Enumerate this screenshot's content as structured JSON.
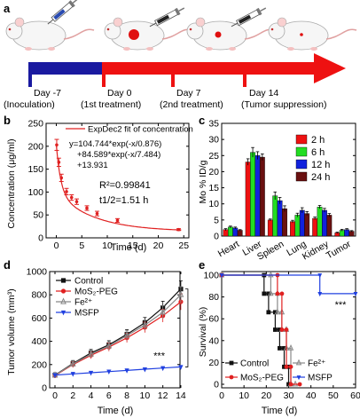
{
  "panel_labels": [
    "a",
    "b",
    "c",
    "d",
    "e"
  ],
  "timeline": {
    "steps": [
      {
        "day": "Day -7",
        "event": "(Inoculation)"
      },
      {
        "day": "Day 0",
        "event": "(1st treatment)"
      },
      {
        "day": "Day 7",
        "event": "(2nd treatment)"
      },
      {
        "day": "Day 14",
        "event": "(Tumor suppression)"
      }
    ],
    "colors": {
      "pre": "#1a1aa0",
      "post": "#ee1111",
      "tumor": "#e01010"
    }
  },
  "chart_data": [
    {
      "panel": "b",
      "type": "line",
      "xlabel": "Time (d)",
      "ylabel": "Concentration (μg/ml)",
      "xlim": [
        -2,
        26
      ],
      "ylim": [
        0,
        250
      ],
      "xticks": [
        0,
        5,
        10,
        15,
        20,
        25
      ],
      "yticks": [
        0,
        50,
        100,
        150,
        200,
        250
      ],
      "legend": "ExpDec2 fit of concentration",
      "equation": [
        "y=104.744*exp(-x/0.876)",
        "+84.589*exp(-x/7.484)",
        "+13.931"
      ],
      "r2": "R²=0.99841",
      "half_life": "t1/2=1.51 h",
      "points": [
        {
          "x": 0.08,
          "y": 203,
          "err": 12
        },
        {
          "x": 0.5,
          "y": 165,
          "err": 9
        },
        {
          "x": 1,
          "y": 131,
          "err": 8
        },
        {
          "x": 2,
          "y": 101,
          "err": 7
        },
        {
          "x": 3,
          "y": 88,
          "err": 6
        },
        {
          "x": 4,
          "y": 79,
          "err": 6
        },
        {
          "x": 6,
          "y": 65,
          "err": 5
        },
        {
          "x": 8,
          "y": 53,
          "err": 5
        },
        {
          "x": 12,
          "y": 38,
          "err": 4
        },
        {
          "x": 24,
          "y": 18,
          "err": 2
        }
      ],
      "fit": {
        "a1": 104.744,
        "t1": 0.876,
        "a2": 84.589,
        "t2": 7.484,
        "y0": 13.931
      },
      "color": "#e02020"
    },
    {
      "panel": "c",
      "type": "bar",
      "ylabel": "Mo % ID/g",
      "ylim": [
        0,
        35
      ],
      "yticks": [
        0,
        5,
        10,
        15,
        20,
        25,
        30,
        35
      ],
      "categories": [
        "Heart",
        "Liver",
        "Spleen",
        "Lung",
        "Kidney",
        "Tumor"
      ],
      "series": [
        {
          "name": "2 h",
          "color": "#ee1111",
          "values": [
            2.0,
            23.0,
            5.0,
            4.5,
            5.5,
            1.0
          ],
          "err": [
            0.3,
            1.0,
            0.3,
            0.4,
            0.4,
            0.2
          ]
        },
        {
          "name": "6 h",
          "color": "#22dd22",
          "values": [
            2.8,
            26.0,
            12.5,
            6.5,
            9.0,
            1.8
          ],
          "err": [
            0.3,
            1.5,
            1.2,
            0.6,
            0.5,
            0.3
          ]
        },
        {
          "name": "12 h",
          "color": "#1122dd",
          "values": [
            2.5,
            25.0,
            11.0,
            8.0,
            8.0,
            2.0
          ],
          "err": [
            0.3,
            1.2,
            1.0,
            0.8,
            0.6,
            0.3
          ]
        },
        {
          "name": "24 h",
          "color": "#6a1010",
          "values": [
            1.8,
            24.5,
            8.5,
            7.0,
            6.5,
            1.5
          ],
          "err": [
            0.2,
            1.0,
            0.9,
            0.6,
            0.5,
            0.2
          ]
        }
      ]
    },
    {
      "panel": "d",
      "type": "line",
      "xlabel": "Time (d)",
      "ylabel": "Tumor volume (mm³)",
      "xlim": [
        0,
        14.5
      ],
      "ylim": [
        0,
        1000
      ],
      "xticks": [
        0,
        2,
        4,
        6,
        8,
        10,
        12,
        14
      ],
      "yticks": [
        0,
        200,
        400,
        600,
        800,
        1000
      ],
      "annotation": "***",
      "x": [
        0,
        2,
        4,
        6,
        8,
        10,
        12,
        14
      ],
      "series": [
        {
          "name": "Control",
          "color": "#111111",
          "marker": "square",
          "values": [
            110,
            210,
            300,
            370,
            460,
            560,
            690,
            850
          ]
        },
        {
          "name": "MoS₂-PEG",
          "color": "#e02020",
          "marker": "circle",
          "values": [
            105,
            200,
            280,
            350,
            430,
            520,
            620,
            740
          ]
        },
        {
          "name": "Fe²⁺",
          "color": "#888888",
          "marker": "triangle",
          "values": [
            108,
            205,
            290,
            360,
            450,
            540,
            650,
            800
          ]
        },
        {
          "name": "MSFP",
          "color": "#2040e0",
          "marker": "triangle-down",
          "values": [
            110,
            120,
            130,
            140,
            150,
            160,
            170,
            180
          ]
        }
      ],
      "err": [
        20,
        25,
        30,
        35,
        40,
        45,
        55,
        70
      ]
    },
    {
      "panel": "e",
      "type": "line",
      "xlabel": "Time (d)",
      "ylabel": "Survival (%)",
      "xlim": [
        0,
        60
      ],
      "ylim": [
        0,
        100
      ],
      "xticks": [
        0,
        10,
        20,
        30,
        40,
        50,
        60
      ],
      "yticks": [
        0,
        20,
        40,
        60,
        80,
        100
      ],
      "annotation": "***",
      "series": [
        {
          "name": "Control",
          "color": "#111111",
          "marker": "square",
          "points": [
            [
              0,
              100
            ],
            [
              19,
              100
            ],
            [
              19,
              83
            ],
            [
              21,
              83
            ],
            [
              21,
              66
            ],
            [
              24,
              66
            ],
            [
              24,
              50
            ],
            [
              26,
              50
            ],
            [
              26,
              33
            ],
            [
              28,
              33
            ],
            [
              28,
              16
            ],
            [
              30,
              16
            ],
            [
              30,
              0
            ]
          ]
        },
        {
          "name": "Fe²⁺",
          "color": "#888888",
          "marker": "triangle",
          "points": [
            [
              0,
              100
            ],
            [
              22,
              100
            ],
            [
              22,
              83
            ],
            [
              25,
              83
            ],
            [
              25,
              66
            ],
            [
              27,
              66
            ],
            [
              27,
              50
            ],
            [
              29,
              50
            ],
            [
              29,
              33
            ],
            [
              31,
              33
            ],
            [
              31,
              0
            ],
            [
              33,
              0
            ]
          ]
        },
        {
          "name": "MoS₂-PEG",
          "color": "#e02020",
          "marker": "circle",
          "points": [
            [
              0,
              100
            ],
            [
              25,
              100
            ],
            [
              25,
              83
            ],
            [
              27,
              83
            ],
            [
              27,
              50
            ],
            [
              29,
              50
            ],
            [
              29,
              16
            ],
            [
              31,
              16
            ],
            [
              31,
              0
            ],
            [
              35,
              0
            ]
          ]
        },
        {
          "name": "MSFP",
          "color": "#2040e0",
          "marker": "triangle-down",
          "points": [
            [
              0,
              100
            ],
            [
              44,
              100
            ],
            [
              44,
              83
            ],
            [
              60,
              83
            ]
          ]
        }
      ]
    }
  ]
}
